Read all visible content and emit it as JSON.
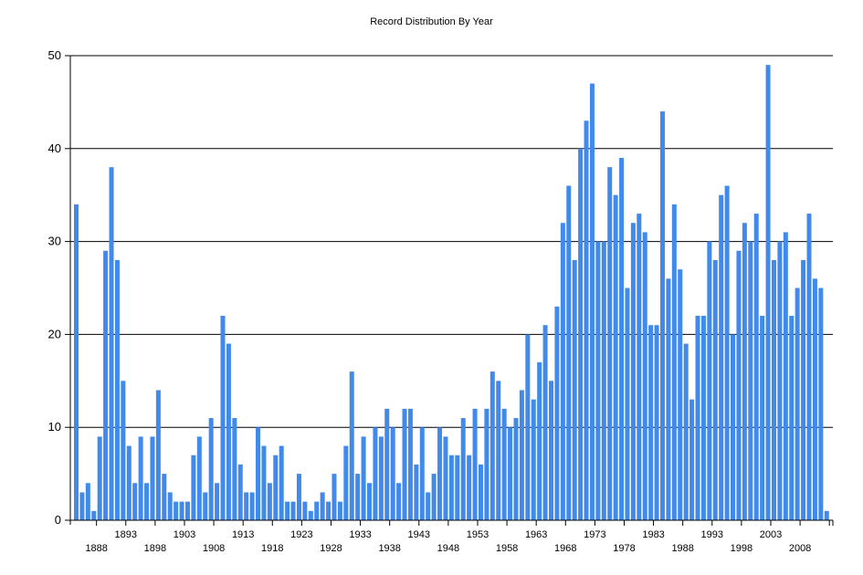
{
  "chart_data": {
    "type": "bar",
    "title": "Record Distribution By Year",
    "xlabel": "",
    "ylabel": "",
    "ylim": [
      0,
      50
    ],
    "yticks": [
      0,
      10,
      20,
      30,
      40,
      50
    ],
    "grid": "horizontal",
    "legend": "none",
    "bar_color": "#4189EA",
    "x_tick_labels_upper": [
      "1893",
      "1903",
      "1913",
      "1923",
      "1933",
      "1943",
      "1953",
      "1963",
      "1973",
      "1983",
      "1993",
      "2003"
    ],
    "x_tick_labels_lower": [
      "1888",
      "1898",
      "1908",
      "1918",
      "1928",
      "1938",
      "1948",
      "1958",
      "1968",
      "1978",
      "1988",
      "1998",
      "2008"
    ],
    "categories": [
      1884,
      1885,
      1886,
      1887,
      1888,
      1889,
      1890,
      1891,
      1892,
      1893,
      1894,
      1895,
      1896,
      1897,
      1898,
      1899,
      1900,
      1901,
      1902,
      1903,
      1904,
      1905,
      1906,
      1907,
      1908,
      1909,
      1910,
      1911,
      1912,
      1913,
      1914,
      1915,
      1916,
      1917,
      1918,
      1919,
      1920,
      1921,
      1922,
      1923,
      1924,
      1925,
      1926,
      1927,
      1928,
      1929,
      1930,
      1931,
      1932,
      1933,
      1934,
      1935,
      1936,
      1937,
      1938,
      1939,
      1940,
      1941,
      1942,
      1943,
      1944,
      1945,
      1946,
      1947,
      1948,
      1949,
      1950,
      1951,
      1952,
      1953,
      1954,
      1955,
      1956,
      1957,
      1958,
      1959,
      1960,
      1961,
      1962,
      1963,
      1964,
      1965,
      1966,
      1967,
      1968,
      1969,
      1970,
      1971,
      1972,
      1973,
      1974,
      1975,
      1976,
      1977,
      1978,
      1979,
      1980,
      1981,
      1982,
      1983,
      1984,
      1985,
      1986,
      1987,
      1988,
      1989,
      1990,
      1991,
      1992,
      1993,
      1994,
      1995,
      1996,
      1997,
      1998,
      1999,
      2000,
      2001,
      2002,
      2003,
      2004,
      2005,
      2006,
      2007,
      2008,
      2009,
      2010,
      2011,
      2012
    ],
    "values": [
      34,
      3,
      4,
      1,
      9,
      29,
      38,
      28,
      15,
      8,
      4,
      9,
      4,
      9,
      14,
      5,
      3,
      2,
      2,
      2,
      7,
      9,
      3,
      11,
      4,
      22,
      19,
      11,
      6,
      3,
      3,
      10,
      8,
      4,
      7,
      8,
      2,
      2,
      5,
      2,
      1,
      2,
      3,
      2,
      5,
      2,
      8,
      16,
      5,
      9,
      4,
      10,
      9,
      12,
      10,
      4,
      12,
      12,
      6,
      10,
      3,
      5,
      10,
      9,
      7,
      7,
      11,
      7,
      12,
      6,
      12,
      16,
      15,
      12,
      10,
      11,
      14,
      20,
      13,
      17,
      21,
      15,
      23,
      32,
      36,
      28,
      40,
      43,
      47,
      30,
      30,
      38,
      35,
      39,
      25,
      32,
      33,
      31,
      21,
      21,
      44,
      26,
      34,
      27,
      19,
      13,
      22,
      22,
      30,
      28,
      35,
      36,
      20,
      29,
      32,
      30,
      33,
      22,
      49,
      28,
      30,
      31,
      22,
      25,
      28,
      33,
      26,
      25,
      1
    ]
  }
}
